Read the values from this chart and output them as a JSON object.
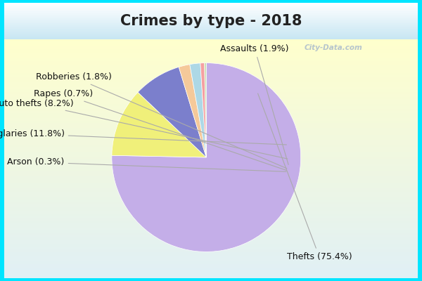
{
  "title": "Crimes by type - 2018",
  "slices": [
    {
      "label": "Thefts",
      "pct": 75.4,
      "color": "#c4aee8"
    },
    {
      "label": "Burglaries",
      "pct": 11.8,
      "color": "#f0f07a"
    },
    {
      "label": "Auto thefts",
      "pct": 8.2,
      "color": "#7b7fcc"
    },
    {
      "label": "Assaults",
      "pct": 1.9,
      "color": "#f5c99a"
    },
    {
      "label": "Robberies",
      "pct": 1.8,
      "color": "#add8e6"
    },
    {
      "label": "Rapes",
      "pct": 0.7,
      "color": "#f5a0a0"
    },
    {
      "label": "Arson",
      "pct": 0.3,
      "color": "#c8ddb0"
    }
  ],
  "startangle": 90,
  "counterclock": false,
  "title_fontsize": 15,
  "label_fontsize": 9,
  "cyan_border": "#00e5ff",
  "bg_color": "#e8f5e9",
  "top_bg": "#d8eff0",
  "watermark": "City-Data.com"
}
